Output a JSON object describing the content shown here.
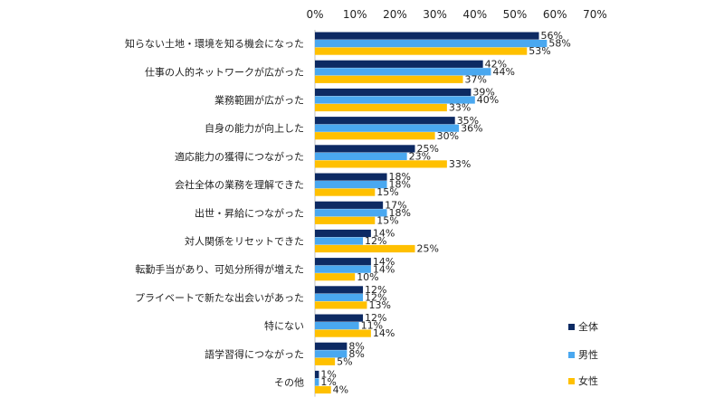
{
  "chart_data": {
    "type": "bar",
    "orientation": "horizontal",
    "categories": [
      "知らない土地・環境を知る機会になった",
      "仕事の人的ネットワークが広がった",
      "業務範囲が広がった",
      "自身の能力が向上した",
      "適応能力の獲得につながった",
      "会社全体の業務を理解できた",
      "出世・昇給につながった",
      "対人関係をリセットできた",
      "転勤手当があり、可処分所得が増えた",
      "プライベートで新たな出会いがあった",
      "特にない",
      "語学習得につながった",
      "その他"
    ],
    "series": [
      {
        "name": "全体",
        "color": "#0d2a63",
        "values": [
          56,
          42,
          39,
          35,
          25,
          18,
          17,
          14,
          14,
          12,
          12,
          8,
          1
        ]
      },
      {
        "name": "男性",
        "color": "#4aa8f0",
        "values": [
          58,
          44,
          40,
          36,
          23,
          18,
          18,
          12,
          14,
          12,
          11,
          8,
          1
        ]
      },
      {
        "name": "女性",
        "color": "#ffc000",
        "values": [
          53,
          37,
          33,
          30,
          33,
          15,
          15,
          25,
          10,
          13,
          14,
          5,
          4
        ]
      }
    ],
    "xlim": [
      0,
      70
    ],
    "xticks": [
      "0%",
      "10%",
      "20%",
      "30%",
      "40%",
      "50%",
      "60%",
      "70%"
    ],
    "value_suffix": "%",
    "legend_position": "right",
    "grid": false
  }
}
